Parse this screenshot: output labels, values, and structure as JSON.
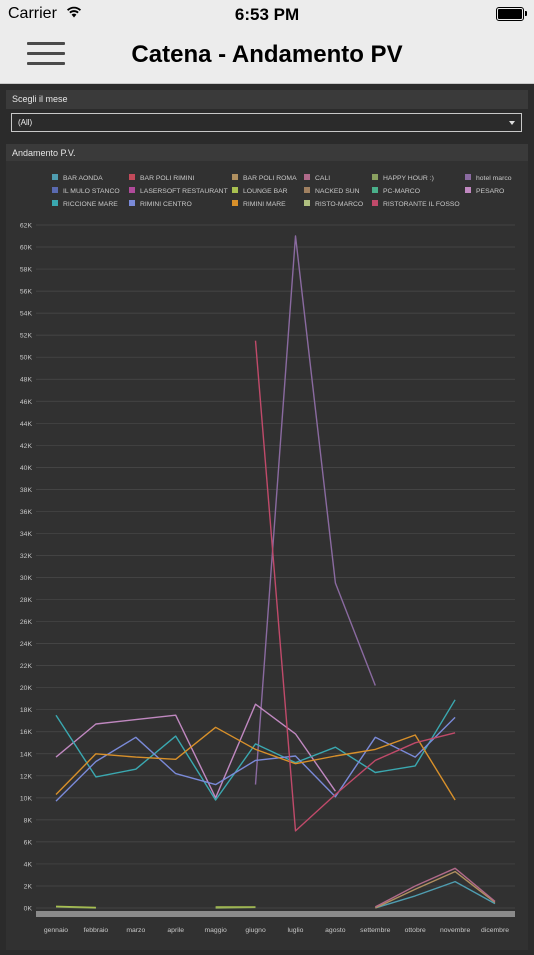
{
  "status_bar": {
    "carrier": "Carrier",
    "time": "6:53 PM"
  },
  "nav": {
    "title": "Catena - Andamento PV",
    "menu_icon": "hamburger-menu-icon"
  },
  "filter": {
    "label": "Scegli il mese",
    "selected": "(All)"
  },
  "chart_panel": {
    "title": "Andamento P.V."
  },
  "chart_data": {
    "type": "line",
    "legend_position": "top",
    "grid": true,
    "ylim": [
      0,
      62000
    ],
    "yticks": [
      "0K",
      "2K",
      "4K",
      "6K",
      "8K",
      "10K",
      "12K",
      "14K",
      "16K",
      "18K",
      "20K",
      "22K",
      "24K",
      "26K",
      "28K",
      "30K",
      "32K",
      "34K",
      "36K",
      "38K",
      "40K",
      "42K",
      "44K",
      "46K",
      "48K",
      "50K",
      "52K",
      "54K",
      "56K",
      "58K",
      "60K",
      "62K"
    ],
    "categories": [
      "gennaio",
      "febbraio",
      "marzo",
      "aprile",
      "maggio",
      "giugno",
      "luglio",
      "agosto",
      "settembre",
      "ottobre",
      "novembre",
      "dicembre"
    ],
    "series": [
      {
        "name": "BAR AONDA",
        "color": "#4f9db0",
        "values": [
          null,
          null,
          null,
          null,
          null,
          null,
          null,
          null,
          0,
          1100,
          2400,
          400
        ]
      },
      {
        "name": "BAR POLI RIMINI",
        "color": "#c24a5a",
        "values": [
          null,
          null,
          null,
          null,
          null,
          null,
          null,
          null,
          null,
          null,
          null,
          null
        ]
      },
      {
        "name": "BAR POLI ROMA",
        "color": "#b09060",
        "values": [
          null,
          null,
          null,
          null,
          null,
          null,
          null,
          null,
          0,
          1700,
          3300,
          500
        ]
      },
      {
        "name": "CALI",
        "color": "#b06a8a",
        "values": [
          null,
          null,
          null,
          null,
          null,
          null,
          null,
          null,
          100,
          2000,
          3600,
          600
        ]
      },
      {
        "name": "HAPPY HOUR :)",
        "color": "#8aa060",
        "values": [
          100,
          0,
          null,
          null,
          0,
          50,
          null,
          null,
          null,
          null,
          null,
          null
        ]
      },
      {
        "name": "hotel marco",
        "color": "#8a6aa0",
        "values": [
          null,
          null,
          null,
          null,
          null,
          11200,
          61000,
          29500,
          20200,
          null,
          null,
          null
        ]
      },
      {
        "name": "IL MULO STANCO",
        "color": "#5a6ab0",
        "values": [
          null,
          null,
          null,
          null,
          null,
          null,
          null,
          null,
          null,
          null,
          null,
          null
        ]
      },
      {
        "name": "LASERSOFT RESTAURANT",
        "color": "#b04a9a",
        "values": [
          null,
          null,
          null,
          null,
          null,
          null,
          null,
          null,
          null,
          null,
          null,
          null
        ]
      },
      {
        "name": "LOUNGE BAR",
        "color": "#a8c050",
        "values": [
          150,
          50,
          null,
          null,
          100,
          100,
          null,
          null,
          null,
          null,
          null,
          null
        ]
      },
      {
        "name": "NACKED SUN",
        "color": "#a08060",
        "values": [
          null,
          null,
          null,
          null,
          null,
          null,
          null,
          null,
          null,
          null,
          null,
          null
        ]
      },
      {
        "name": "PC-MARCO",
        "color": "#4ab08a",
        "values": [
          null,
          null,
          null,
          null,
          null,
          null,
          null,
          null,
          null,
          null,
          null,
          null
        ]
      },
      {
        "name": "PESARO",
        "color": "#c088c0",
        "values": [
          13700,
          16700,
          17100,
          17500,
          10000,
          18500,
          15800,
          10600,
          null,
          null,
          null,
          null
        ]
      },
      {
        "name": "RICCIONE MARE",
        "color": "#3aa8b0",
        "values": [
          17500,
          11900,
          12600,
          15600,
          9800,
          14900,
          13200,
          14600,
          12300,
          12900,
          18900,
          null
        ]
      },
      {
        "name": "RIMINI CENTRO",
        "color": "#7a8ad8",
        "values": [
          9700,
          13300,
          15500,
          12200,
          11200,
          13400,
          13800,
          10100,
          15500,
          13700,
          17300,
          null
        ]
      },
      {
        "name": "RIMINI MARE",
        "color": "#d8902a",
        "values": [
          10300,
          14000,
          13700,
          13500,
          16400,
          14400,
          13100,
          13800,
          14400,
          15700,
          9800,
          null
        ]
      },
      {
        "name": "RISTO-MARCO",
        "color": "#b0c080",
        "values": [
          null,
          null,
          null,
          null,
          null,
          null,
          null,
          null,
          null,
          null,
          null,
          null
        ]
      },
      {
        "name": "RISTORANTE IL FOSSO",
        "color": "#c04a6a",
        "values": [
          null,
          null,
          null,
          null,
          null,
          51500,
          7000,
          10300,
          13400,
          15000,
          15900,
          null
        ]
      }
    ]
  }
}
